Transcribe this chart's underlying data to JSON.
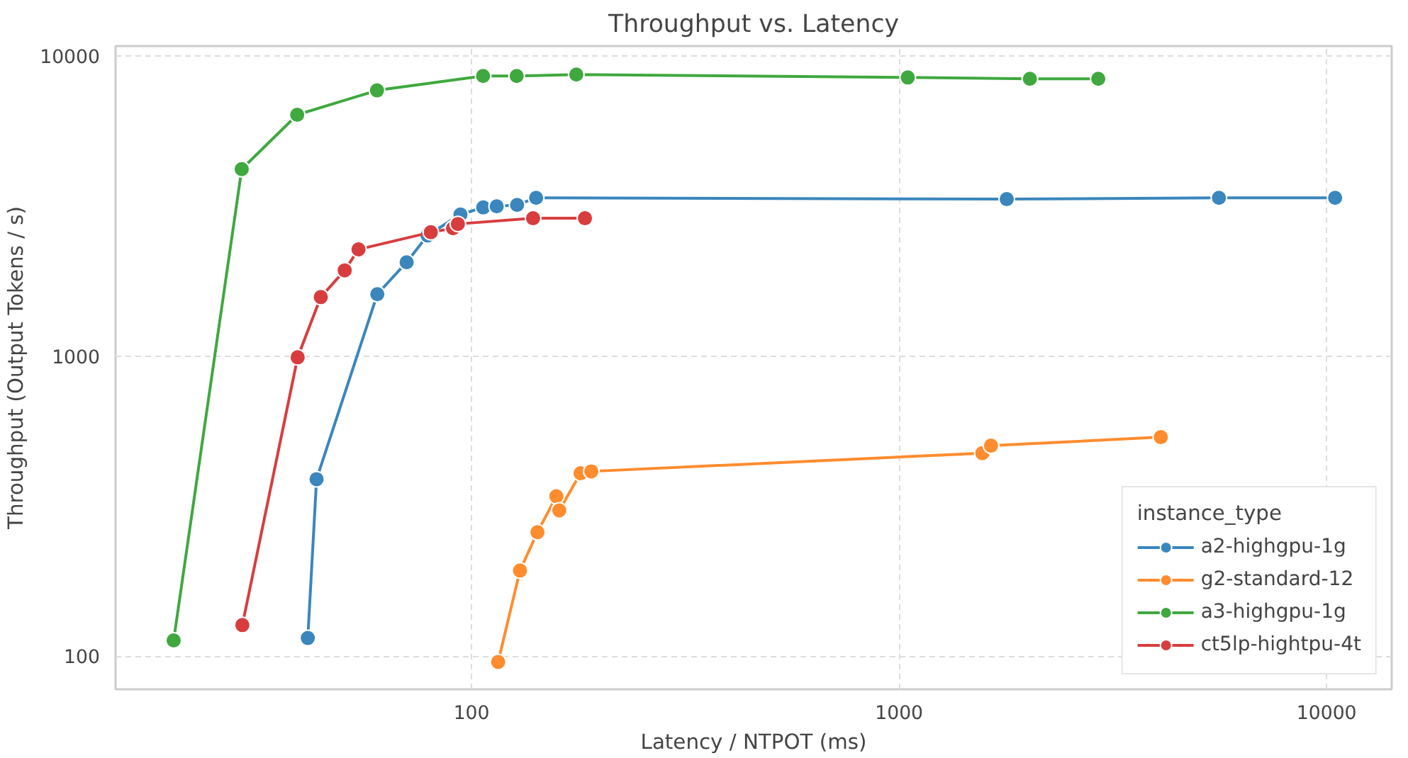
{
  "chart_data": {
    "type": "line",
    "title": "Throughput vs. Latency",
    "xlabel": "Latency / NTPOT (ms)",
    "ylabel": "Throughput (Output Tokens / s)",
    "legend_title": "instance_type",
    "log": "xy",
    "xlim": [
      14.7,
      14200
    ],
    "ylim": [
      77.6,
      10790
    ],
    "xticks": [
      100,
      1000,
      10000
    ],
    "yticks": [
      100,
      1000,
      10000
    ],
    "grid": true,
    "legend": "bottom right",
    "marker": "circle",
    "line_style": "solid",
    "series": [
      {
        "name": "a2-highgpu-1g",
        "color": "#3a86bd",
        "x": [
          41.4,
          43.4,
          60.2,
          70.5,
          78.9,
          94.2,
          106.5,
          114.5,
          127.8,
          141.6,
          1786,
          5600,
          10470
        ],
        "values": [
          115,
          389,
          1608,
          2054,
          2524,
          2964,
          3128,
          3155,
          3190,
          3367,
          3334,
          3367,
          3367
        ]
      },
      {
        "name": "g2-standard-12",
        "color": "#ff8c2e",
        "x": [
          115.4,
          129.8,
          142.6,
          157.9,
          160.4,
          179.9,
          190.6,
          1566,
          1641,
          4095
        ],
        "values": [
          95.7,
          193,
          259,
          341,
          306,
          407,
          413,
          475,
          503,
          537
        ]
      },
      {
        "name": "a3-highgpu-1g",
        "color": "#3fa83f",
        "x": [
          20.1,
          29.0,
          39.1,
          60.1,
          106.4,
          127.5,
          175.8,
          1048,
          2023,
          2924
        ],
        "values": [
          112.9,
          4197,
          6370,
          7679,
          8577,
          8577,
          8670,
          8480,
          8390,
          8390
        ]
      },
      {
        "name": "ct5lp-hightpu-4t",
        "color": "#d83d3e",
        "x": [
          29.1,
          39.2,
          44.4,
          50.5,
          54.4,
          80.3,
          90.5,
          92.9,
          139.3,
          184.2
        ],
        "values": [
          127,
          991,
          1573,
          1930,
          2268,
          2586,
          2666,
          2756,
          2879,
          2879
        ]
      }
    ]
  }
}
